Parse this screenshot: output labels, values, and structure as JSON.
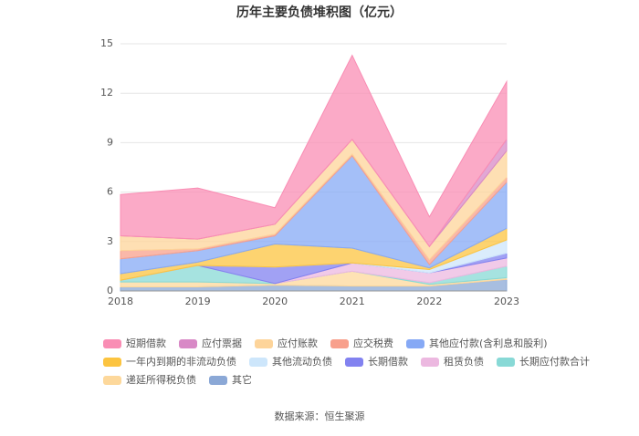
{
  "chart_data": {
    "type": "stacked_area",
    "title": "历年主要负债堆积图（亿元）",
    "source": "数据来源：恒生聚源",
    "categories": [
      "2018",
      "2019",
      "2020",
      "2021",
      "2022",
      "2023"
    ],
    "ylim": [
      0,
      15
    ],
    "yticks": [
      0,
      3,
      6,
      9,
      12,
      15
    ],
    "grid": true,
    "series": [
      {
        "name": "短期借款",
        "color": "#f98db4",
        "values": [
          2.5,
          3.1,
          1.0,
          5.1,
          1.8,
          3.5
        ]
      },
      {
        "name": "应付票据",
        "color": "#d889c6",
        "values": [
          0,
          0,
          0,
          0,
          0,
          0.7
        ]
      },
      {
        "name": "应付账款",
        "color": "#fdd49a",
        "values": [
          0.9,
          0.6,
          0.6,
          0.9,
          0.8,
          1.6
        ]
      },
      {
        "name": "应交税费",
        "color": "#f8a08c",
        "values": [
          0.5,
          0.1,
          0.1,
          0.1,
          0.3,
          0.3
        ]
      },
      {
        "name": "其他应付款(含利息和股利)",
        "color": "#86a9f5",
        "values": [
          0.9,
          0.7,
          0.5,
          5.6,
          0.2,
          2.8
        ]
      },
      {
        "name": "一年内到期的非流动负债",
        "color": "#fcc440",
        "values": [
          0.4,
          0.2,
          1.4,
          0.9,
          0.1,
          0.7
        ]
      },
      {
        "name": "其他流动负债",
        "color": "#cde6fb",
        "values": [
          0,
          0,
          0,
          0,
          0.2,
          0.8
        ]
      },
      {
        "name": "长期借款",
        "color": "#8282f0",
        "values": [
          0,
          0,
          1.0,
          0,
          0,
          0.3
        ]
      },
      {
        "name": "租赁负债",
        "color": "#ecb8e0",
        "values": [
          0,
          0,
          0,
          0.5,
          0.6,
          0.5
        ]
      },
      {
        "name": "长期应付款合计",
        "color": "#88d9d6",
        "values": [
          0.1,
          1.0,
          0,
          0,
          0.1,
          0.7
        ]
      },
      {
        "name": "递延所得税负债",
        "color": "#fdd89b",
        "values": [
          0.3,
          0.3,
          0.1,
          0.9,
          0.1,
          0.1
        ]
      },
      {
        "name": "其它",
        "color": "#8ba8d6",
        "values": [
          0.25,
          0.25,
          0.35,
          0.3,
          0.3,
          0.7
        ]
      }
    ]
  }
}
